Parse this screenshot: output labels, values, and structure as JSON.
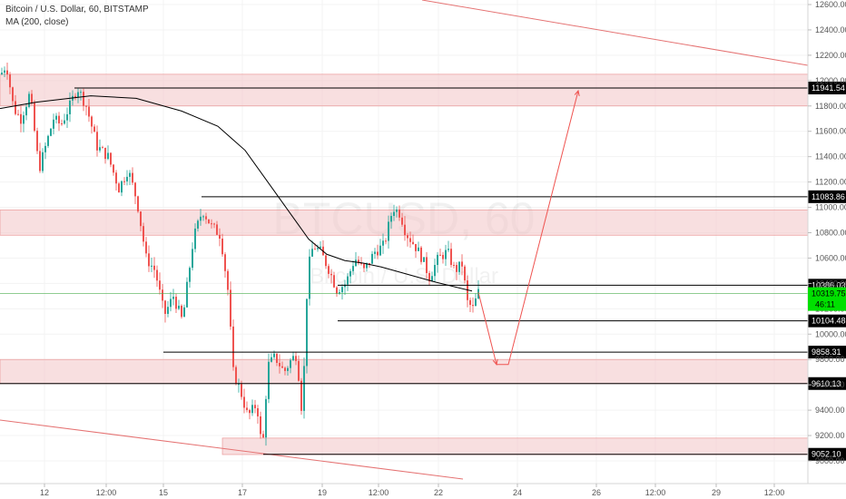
{
  "header": {
    "title": "Bitcoin / U.S. Dollar, 60, BITSTAMP",
    "indicator": "MA (200, close)"
  },
  "watermark": {
    "symbol": "BTCUSD, 60",
    "name": "Bitcoin / U.S. Dollar"
  },
  "colors": {
    "up": "#26a69a",
    "down": "#ef5350",
    "ma": "#000000",
    "zone_fill": "#f2c4c6",
    "zone_edge": "#e57373",
    "trend": "#e57373",
    "arrow": "#ef5350",
    "current_line": "#4caf50",
    "price_tag": "#00e000"
  },
  "chart_data": {
    "type": "candlestick",
    "title": "Bitcoin / U.S. Dollar, 60, BITSTAMP",
    "ylim": [
      8950,
      12700
    ],
    "y_ticks": [
      12600,
      12400,
      12200,
      12000,
      11800,
      11600,
      11400,
      11200,
      11000,
      10800,
      10600,
      10400,
      10200,
      10000,
      9800,
      9600,
      9400,
      9200,
      9000
    ],
    "x_ticks": [
      "12",
      "12:00",
      "15",
      "17",
      "19",
      "12:00",
      "22",
      "24",
      "26",
      "12:00",
      "29",
      "12:00"
    ],
    "current_price": 10319.75,
    "countdown": "46:11",
    "levels": [
      11941.54,
      11083.86,
      10386.03,
      10104.48,
      9858.31,
      9610.13,
      9052.1
    ],
    "zones": [
      [
        11800,
        12050
      ],
      [
        10780,
        10980
      ],
      [
        9610,
        9800
      ],
      [
        9050,
        9180
      ]
    ],
    "price_path": [
      [
        0,
        12050
      ],
      [
        6,
        12130
      ],
      [
        14,
        11780
      ],
      [
        22,
        11700
      ],
      [
        32,
        11900
      ],
      [
        42,
        11300
      ],
      [
        50,
        11500
      ],
      [
        58,
        11700
      ],
      [
        66,
        11650
      ],
      [
        76,
        11800
      ],
      [
        84,
        11950
      ],
      [
        94,
        11800
      ],
      [
        106,
        11480
      ],
      [
        118,
        11400
      ],
      [
        130,
        11150
      ],
      [
        140,
        11300
      ],
      [
        150,
        11050
      ],
      [
        160,
        10600
      ],
      [
        170,
        10500
      ],
      [
        180,
        10150
      ],
      [
        190,
        10300
      ],
      [
        200,
        10100
      ],
      [
        212,
        10750
      ],
      [
        222,
        10980
      ],
      [
        232,
        10850
      ],
      [
        242,
        10780
      ],
      [
        250,
        10350
      ],
      [
        256,
        9700
      ],
      [
        264,
        9550
      ],
      [
        272,
        9350
      ],
      [
        282,
        9450
      ],
      [
        288,
        9060
      ],
      [
        294,
        9750
      ],
      [
        302,
        9820
      ],
      [
        312,
        9700
      ],
      [
        320,
        9800
      ],
      [
        326,
        9840
      ],
      [
        332,
        9350
      ],
      [
        338,
        10500
      ],
      [
        344,
        10700
      ],
      [
        352,
        10650
      ],
      [
        362,
        10500
      ],
      [
        370,
        10350
      ],
      [
        380,
        10400
      ],
      [
        390,
        10600
      ],
      [
        400,
        10500
      ],
      [
        412,
        10650
      ],
      [
        422,
        10700
      ],
      [
        432,
        11000
      ],
      [
        440,
        10950
      ],
      [
        446,
        10800
      ],
      [
        456,
        10700
      ],
      [
        464,
        10600
      ],
      [
        472,
        10450
      ],
      [
        482,
        10600
      ],
      [
        492,
        10650
      ],
      [
        500,
        10500
      ],
      [
        508,
        10550
      ],
      [
        514,
        10250
      ],
      [
        520,
        10200
      ],
      [
        526,
        10330
      ]
    ],
    "ma200_path": [
      [
        0,
        11780
      ],
      [
        40,
        11830
      ],
      [
        100,
        11880
      ],
      [
        150,
        11860
      ],
      [
        200,
        11760
      ],
      [
        240,
        11640
      ],
      [
        270,
        11450
      ],
      [
        300,
        11150
      ],
      [
        320,
        10950
      ],
      [
        340,
        10750
      ],
      [
        360,
        10630
      ],
      [
        380,
        10580
      ],
      [
        400,
        10560
      ],
      [
        420,
        10530
      ],
      [
        450,
        10470
      ],
      [
        480,
        10410
      ],
      [
        520,
        10340
      ]
    ]
  }
}
